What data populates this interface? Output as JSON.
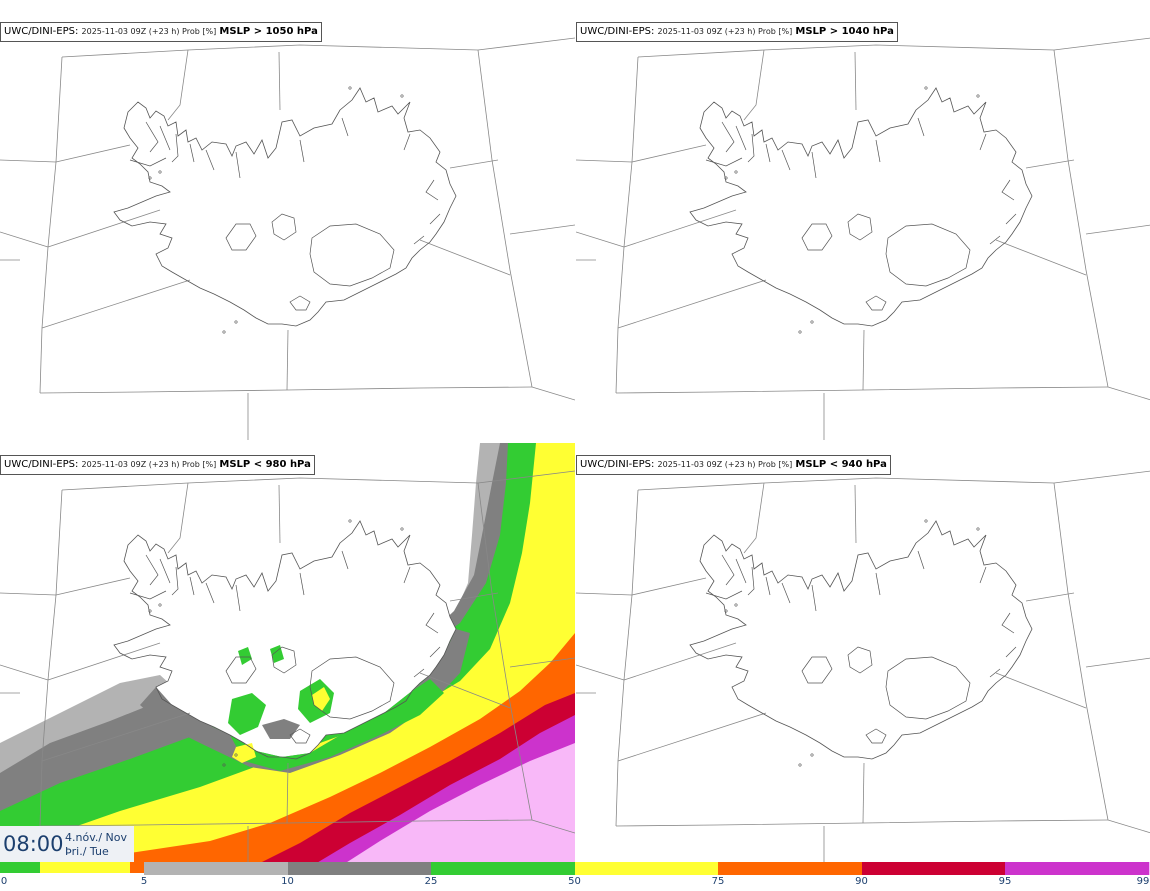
{
  "panels": [
    {
      "model": "UWC/DINI-EPS",
      "meta": "2025-11-03 09Z (+23 h) Prob [%]",
      "threshold": "MSLP > 1050 hPa"
    },
    {
      "model": "UWC/DINI-EPS",
      "meta": "2025-11-03 09Z (+23 h) Prob [%]",
      "threshold": "MSLP > 1040 hPa"
    },
    {
      "model": "UWC/DINI-EPS",
      "meta": "2025-11-03 09Z (+23 h) Prob [%]",
      "threshold": "MSLP < 980 hPa"
    },
    {
      "model": "UWC/DINI-EPS",
      "meta": "2025-11-03 09Z (+23 h) Prob [%]",
      "threshold": "MSLP < 940 hPa"
    }
  ],
  "time": {
    "clock": "08:00",
    "date_line1": "4.nóv./ Nov",
    "date_line2": "Þri./ Tue"
  },
  "legend": {
    "ticks": [
      "0",
      "5",
      "10",
      "25",
      "50",
      "75",
      "90",
      "95",
      "99"
    ],
    "colors": [
      "#ffffff",
      "#b3b3b3",
      "#808080",
      "#33cc33",
      "#ffff33",
      "#ff6600",
      "#cc0033",
      "#cc33cc",
      "#f8b8f8"
    ]
  }
}
